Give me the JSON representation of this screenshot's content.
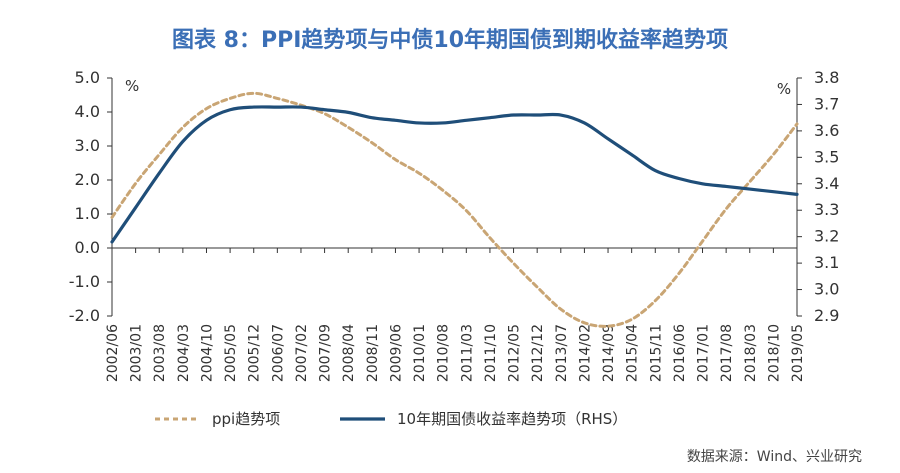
{
  "chart_data": {
    "type": "line",
    "title": "图表 8：PPI趋势项与中债10年期国债到期收益率趋势项",
    "source": "数据来源：Wind、兴业研究",
    "colors": {
      "title": "#3b6fb6",
      "ppi": "#c9a574",
      "bond": "#1f4e79",
      "axis": "#333333"
    },
    "y_left": {
      "unit": "%",
      "range": [
        -2.0,
        5.0
      ],
      "ticks": [
        "-2.0",
        "-1.0",
        "0.0",
        "1.0",
        "2.0",
        "3.0",
        "4.0",
        "5.0"
      ]
    },
    "y_right": {
      "unit": "%",
      "range": [
        2.9,
        3.8
      ],
      "ticks": [
        "2.9",
        "3.0",
        "3.1",
        "3.2",
        "3.3",
        "3.4",
        "3.5",
        "3.6",
        "3.7",
        "3.8"
      ]
    },
    "x_range": [
      "2002/06",
      "2019/05"
    ],
    "x_ticks": [
      "2002/06",
      "2003/01",
      "2003/08",
      "2004/03",
      "2004/10",
      "2005/05",
      "2005/12",
      "2006/07",
      "2007/02",
      "2007/09",
      "2008/04",
      "2008/11",
      "2009/06",
      "2010/01",
      "2010/08",
      "2011/03",
      "2011/10",
      "2012/05",
      "2012/12",
      "2013/07",
      "2014/02",
      "2014/09",
      "2015/04",
      "2015/11",
      "2016/06",
      "2017/01",
      "2017/08",
      "2018/03",
      "2018/10",
      "2019/05"
    ],
    "legend_position": "bottom",
    "series": [
      {
        "name": "ppi趋势项",
        "axis": "left",
        "style": "dashed",
        "x": [
          "2002/06",
          "2003/01",
          "2003/08",
          "2004/03",
          "2004/10",
          "2005/05",
          "2005/12",
          "2006/07",
          "2007/02",
          "2007/09",
          "2008/04",
          "2008/11",
          "2009/06",
          "2010/01",
          "2010/08",
          "2011/03",
          "2011/10",
          "2012/05",
          "2012/12",
          "2013/07",
          "2014/02",
          "2014/09",
          "2015/04",
          "2015/11",
          "2016/06",
          "2017/01",
          "2017/08",
          "2018/03",
          "2018/10",
          "2019/05"
        ],
        "values": [
          0.9,
          1.9,
          2.75,
          3.55,
          4.1,
          4.4,
          4.55,
          4.4,
          4.2,
          3.95,
          3.55,
          3.1,
          2.6,
          2.2,
          1.7,
          1.1,
          0.3,
          -0.45,
          -1.15,
          -1.8,
          -2.2,
          -2.3,
          -2.1,
          -1.55,
          -0.75,
          0.2,
          1.15,
          1.95,
          2.75,
          3.65
        ]
      },
      {
        "name": "10年期国债收益率趋势项（RHS）",
        "axis": "right",
        "style": "solid",
        "x": [
          "2002/06",
          "2003/01",
          "2003/08",
          "2004/03",
          "2004/10",
          "2005/05",
          "2005/12",
          "2006/07",
          "2007/02",
          "2007/09",
          "2008/04",
          "2008/11",
          "2009/06",
          "2010/01",
          "2010/08",
          "2011/03",
          "2011/10",
          "2012/05",
          "2012/12",
          "2013/07",
          "2014/02",
          "2014/09",
          "2015/04",
          "2015/11",
          "2016/06",
          "2017/01",
          "2017/08",
          "2018/03",
          "2018/10",
          "2019/05"
        ],
        "values": [
          3.18,
          3.31,
          3.44,
          3.56,
          3.64,
          3.68,
          3.69,
          3.69,
          3.69,
          3.68,
          3.67,
          3.65,
          3.64,
          3.63,
          3.63,
          3.64,
          3.65,
          3.66,
          3.66,
          3.66,
          3.63,
          3.57,
          3.51,
          3.45,
          3.42,
          3.4,
          3.39,
          3.38,
          3.37,
          3.36
        ]
      }
    ]
  }
}
